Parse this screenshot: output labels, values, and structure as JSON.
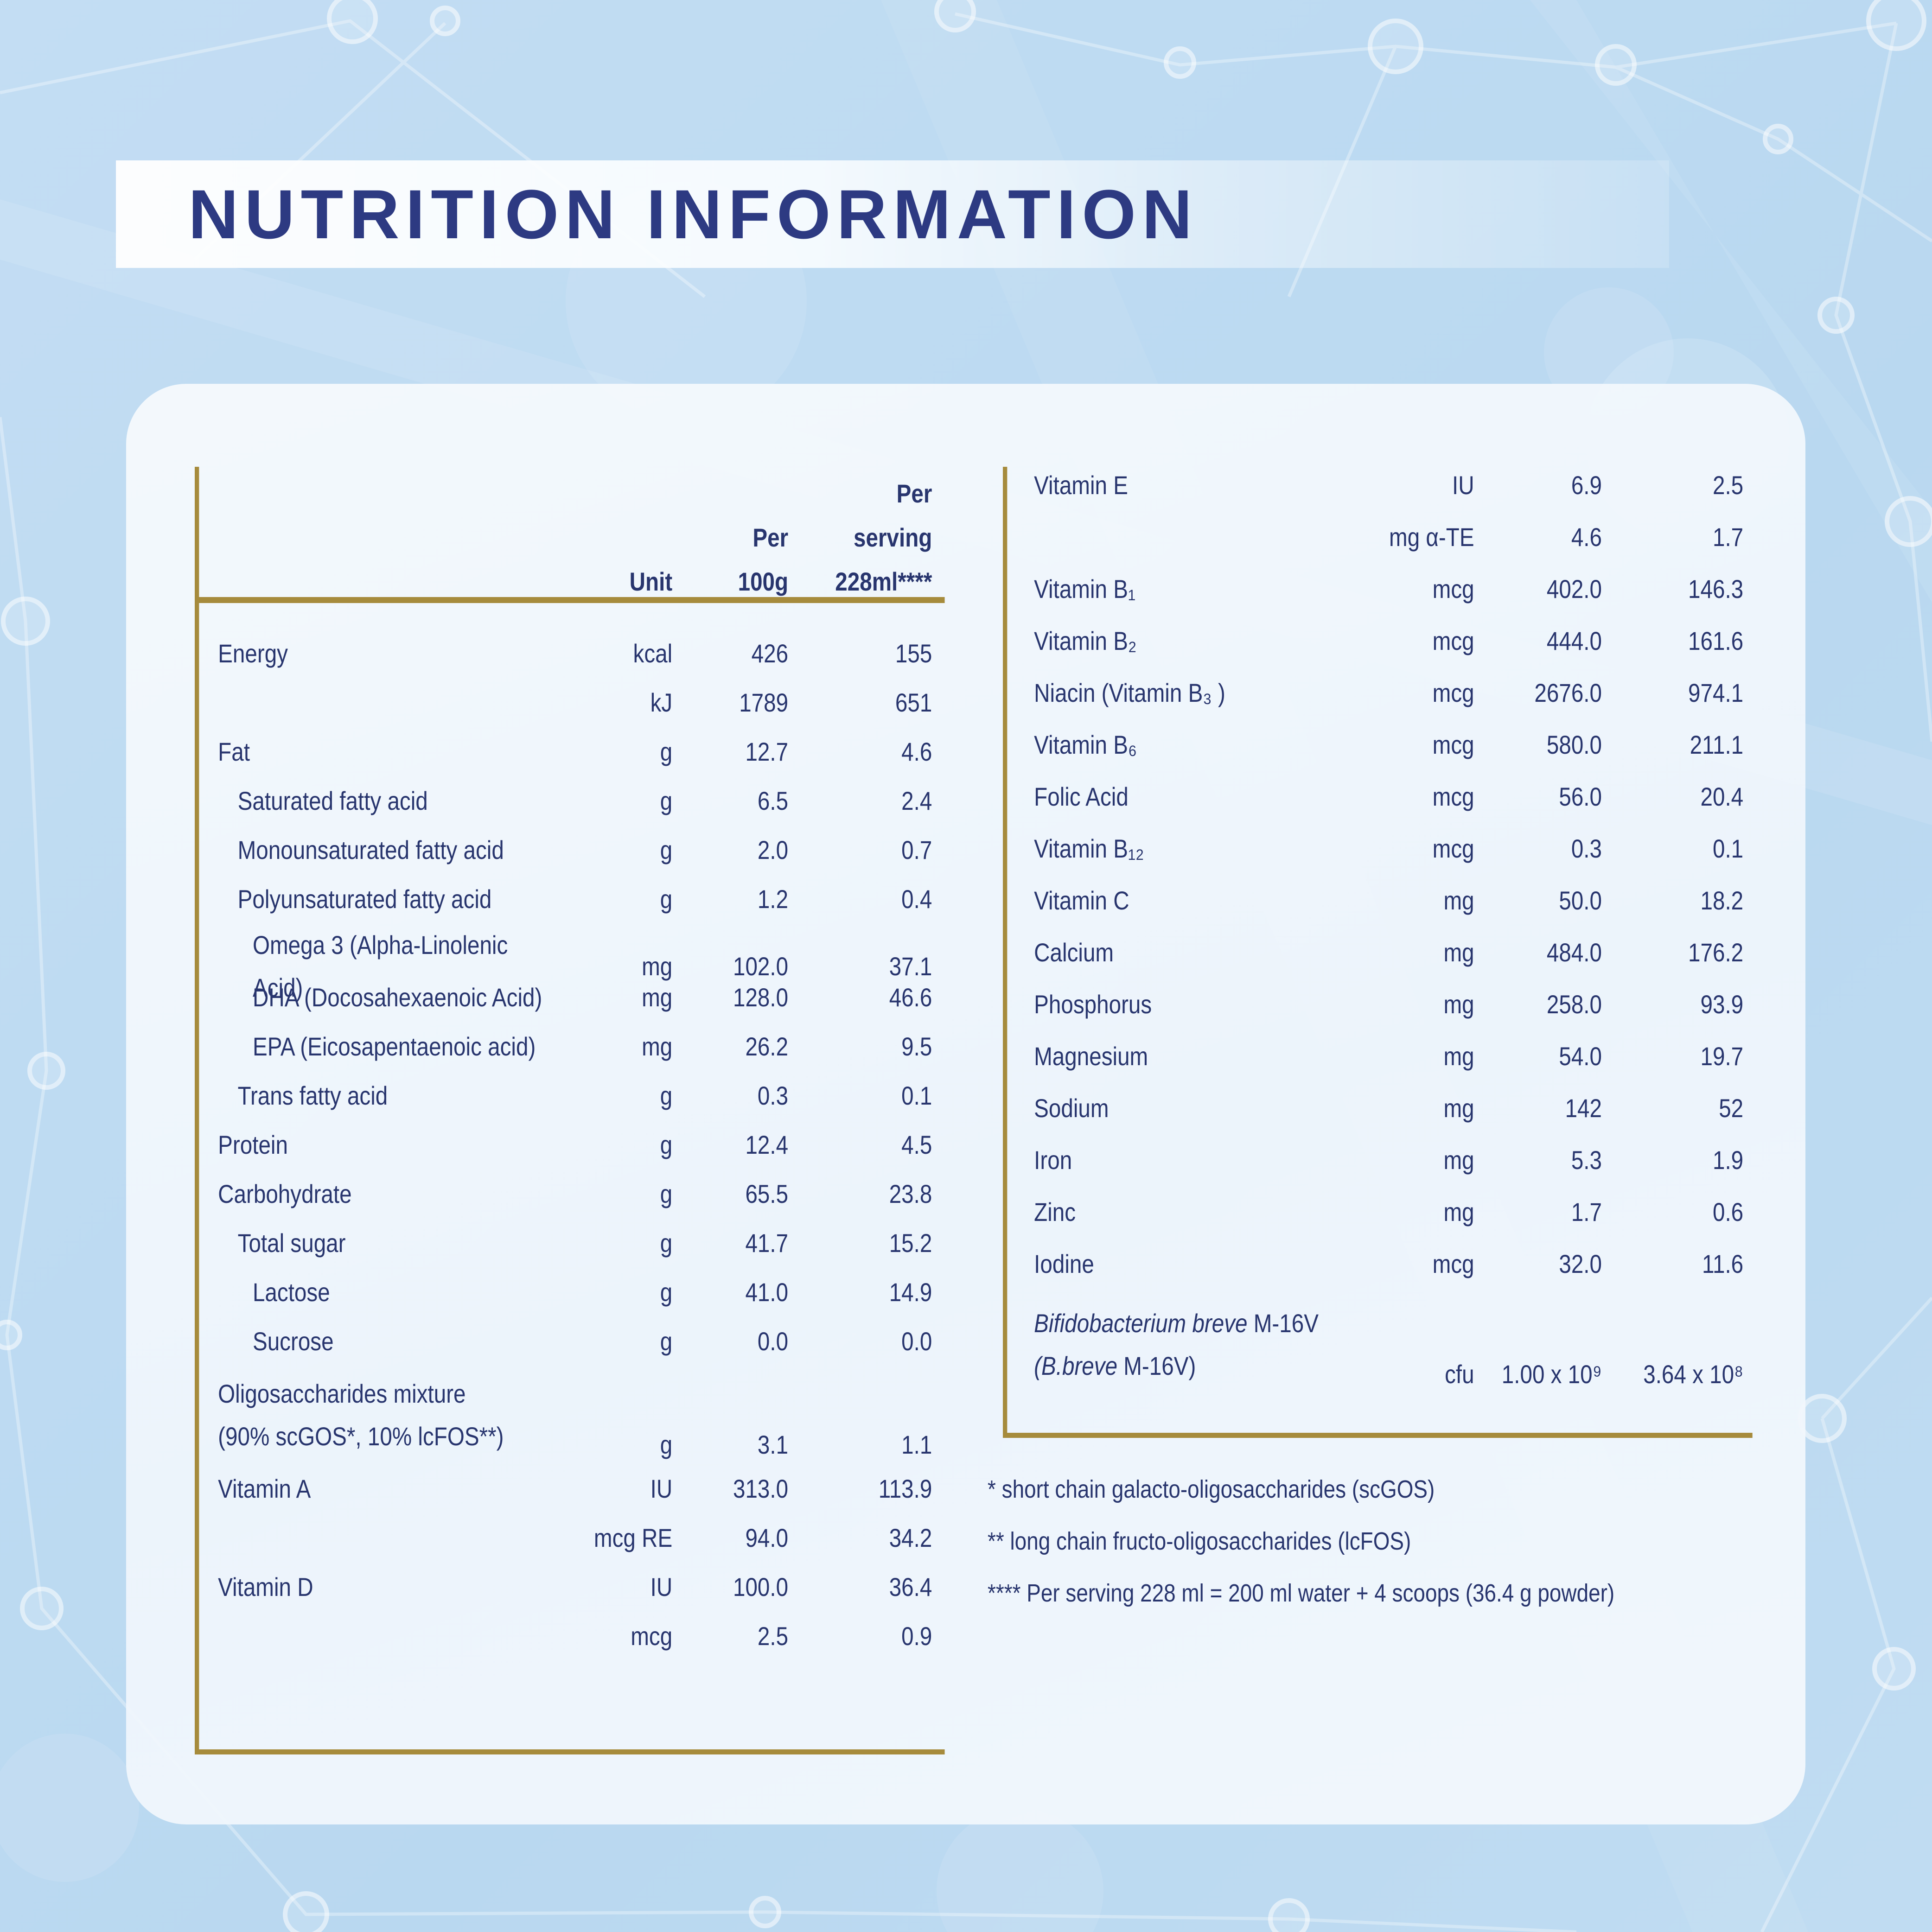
{
  "title": "NUTRITION INFORMATION",
  "colors": {
    "accent_gold": "#a68b3c",
    "body_navy": "#28356e",
    "title_navy": "#2d3a82",
    "page_blue": "#bedbf2",
    "panel_white": "#f2f7fc"
  },
  "left_table": {
    "header": {
      "unit": "Unit",
      "per_100g": "Per\n100g",
      "per_serving": "Per\nserving\n228ml****"
    },
    "rows": [
      {
        "l": "Energy",
        "u": "kcal",
        "a": "426",
        "b": "155"
      },
      {
        "l": "",
        "u": "kJ",
        "a": "1789",
        "b": "651"
      },
      {
        "l": "Fat",
        "u": "g",
        "a": "12.7",
        "b": "4.6"
      },
      {
        "l": "Saturated fatty acid",
        "i": 1,
        "u": "g",
        "a": "6.5",
        "b": "2.4"
      },
      {
        "l": "Monounsaturated fatty acid",
        "i": 1,
        "u": "g",
        "a": "2.0",
        "b": "0.7"
      },
      {
        "l": "Polyunsaturated fatty acid",
        "i": 1,
        "u": "g",
        "a": "1.2",
        "b": "0.4"
      },
      {
        "l": "Omega 3 (Alpha-Linolenic Acid)",
        "i": 2,
        "u": "mg",
        "a": "102.0",
        "b": "37.1"
      },
      {
        "l": "DHA (Docosahexaenoic Acid)",
        "i": 2,
        "u": "mg",
        "a": "128.0",
        "b": "46.6"
      },
      {
        "l": "EPA (Eicosapentaenoic acid)",
        "i": 2,
        "u": "mg",
        "a": "26.2",
        "b": "9.5"
      },
      {
        "l": "Trans fatty acid",
        "i": 1,
        "u": "g",
        "a": "0.3",
        "b": "0.1"
      },
      {
        "l": "Protein",
        "u": "g",
        "a": "12.4",
        "b": "4.5"
      },
      {
        "l": "Carbohydrate",
        "u": "g",
        "a": "65.5",
        "b": "23.8"
      },
      {
        "l": "Total sugar",
        "i": 1,
        "u": "g",
        "a": "41.7",
        "b": "15.2"
      },
      {
        "l": "Lactose",
        "i": 2,
        "u": "g",
        "a": "41.0",
        "b": "14.9"
      },
      {
        "l": "Sucrose",
        "i": 2,
        "u": "g",
        "a": "0.0",
        "b": "0.0"
      },
      {
        "ll": [
          "Oligosaccharides mixture",
          "(90% scGOS*, 10% lcFOS**)"
        ],
        "u": "g",
        "a": "3.1",
        "b": "1.1"
      },
      {
        "l": "Vitamin A",
        "u": "IU",
        "a": "313.0",
        "b": "113.9"
      },
      {
        "l": "",
        "u": "mcg RE",
        "a": "94.0",
        "b": "34.2"
      },
      {
        "l": "Vitamin D",
        "u": "IU",
        "a": "100.0",
        "b": "36.4"
      },
      {
        "l": "",
        "u": "mcg",
        "a": "2.5",
        "b": "0.9"
      }
    ]
  },
  "right_table": {
    "rows": [
      {
        "l": "Vitamin E",
        "u": "IU",
        "a": "6.9",
        "b": "2.5"
      },
      {
        "l": "",
        "u": "mg α-TE",
        "a": "4.6",
        "b": "1.7"
      },
      {
        "l": "Vitamin B₁",
        "u": "mcg",
        "a": "402.0",
        "b": "146.3"
      },
      {
        "l": "Vitamin B₂",
        "u": "mcg",
        "a": "444.0",
        "b": "161.6"
      },
      {
        "l": "Niacin (Vitamin B₃ )",
        "u": "mcg",
        "a": "2676.0",
        "b": "974.1"
      },
      {
        "l": "Vitamin B₆",
        "u": "mcg",
        "a": "580.0",
        "b": "211.1"
      },
      {
        "l": "Folic Acid",
        "u": "mcg",
        "a": "56.0",
        "b": "20.4"
      },
      {
        "l": "Vitamin B₁₂",
        "u": "mcg",
        "a": "0.3",
        "b": "0.1"
      },
      {
        "l": "Vitamin C",
        "u": "mg",
        "a": "50.0",
        "b": "18.2"
      },
      {
        "l": "Calcium",
        "u": "mg",
        "a": "484.0",
        "b": "176.2"
      },
      {
        "l": "Phosphorus",
        "u": "mg",
        "a": "258.0",
        "b": "93.9"
      },
      {
        "l": "Magnesium",
        "u": "mg",
        "a": "54.0",
        "b": "19.7"
      },
      {
        "l": "Sodium",
        "u": "mg",
        "a": "142",
        "b": "52"
      },
      {
        "l": "Iron",
        "u": "mg",
        "a": "5.3",
        "b": "1.9"
      },
      {
        "l": "Zinc",
        "u": "mg",
        "a": "1.7",
        "b": "0.6"
      },
      {
        "l": "Iodine",
        "u": "mcg",
        "a": "32.0",
        "b": "11.6"
      },
      {
        "lp": [
          [
            {
              "t": "Bifidobacterium breve",
              "it": true
            },
            {
              "t": " M-16V"
            }
          ],
          [
            {
              "t": "(B.breve",
              "it": true
            },
            {
              "t": " M-16V)"
            }
          ]
        ],
        "u": "cfu",
        "a": "1.00 x 10⁹",
        "b": "3.64 x 10⁸"
      }
    ]
  },
  "footnotes": [
    "* short chain galacto-oligosaccharides (scGOS)",
    "** long chain fructo-oligosaccharides (lcFOS)",
    "**** Per serving 228 ml = 200 ml water + 4 scoops (36.4 g powder)"
  ]
}
